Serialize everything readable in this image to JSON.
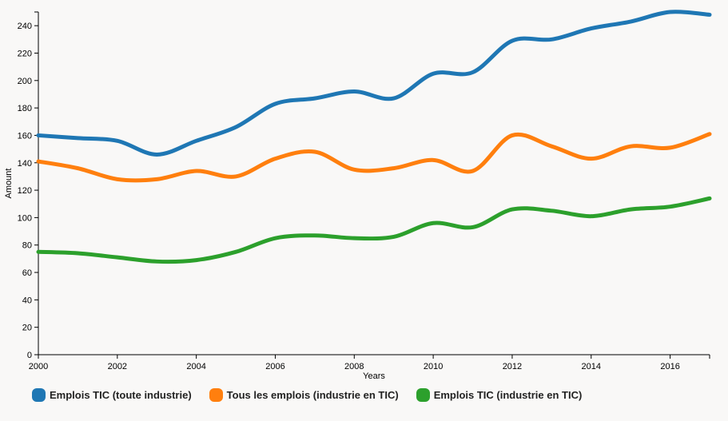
{
  "chart_data": {
    "type": "line",
    "xlabel": "Years",
    "ylabel": "Amount",
    "xlim": [
      2000,
      2017
    ],
    "ylim": [
      0,
      250
    ],
    "x_ticks": [
      "2000",
      "2002",
      "2004",
      "2006",
      "2008",
      "2010",
      "2012",
      "2014",
      "2016"
    ],
    "y_ticks": [
      "0",
      "20",
      "40",
      "60",
      "80",
      "100",
      "120",
      "140",
      "160",
      "180",
      "200",
      "220",
      "240"
    ],
    "x": [
      2000,
      2001,
      2002,
      2003,
      2004,
      2005,
      2006,
      2007,
      2008,
      2009,
      2010,
      2011,
      2012,
      2013,
      2014,
      2015,
      2016,
      2017
    ],
    "series": [
      {
        "name": "Emplois TIC (toute industrie)",
        "color": "#1f77b4",
        "values": [
          160,
          158,
          156,
          146,
          156,
          166,
          183,
          187,
          192,
          187,
          205,
          206,
          229,
          230,
          238,
          243,
          250,
          248
        ]
      },
      {
        "name": "Tous les emplois (industrie en TIC)",
        "color": "#ff7f0e",
        "values": [
          141,
          136,
          128,
          128,
          134,
          130,
          143,
          148,
          135,
          136,
          142,
          134,
          160,
          152,
          143,
          152,
          151,
          161
        ]
      },
      {
        "name": "Emplois TIC (industrie en TIC)",
        "color": "#2ca02c",
        "values": [
          75,
          74,
          71,
          68,
          69,
          75,
          85,
          87,
          85,
          86,
          96,
          93,
          106,
          105,
          101,
          106,
          108,
          114
        ]
      }
    ],
    "grid": false,
    "legend_position": "bottom-left"
  }
}
